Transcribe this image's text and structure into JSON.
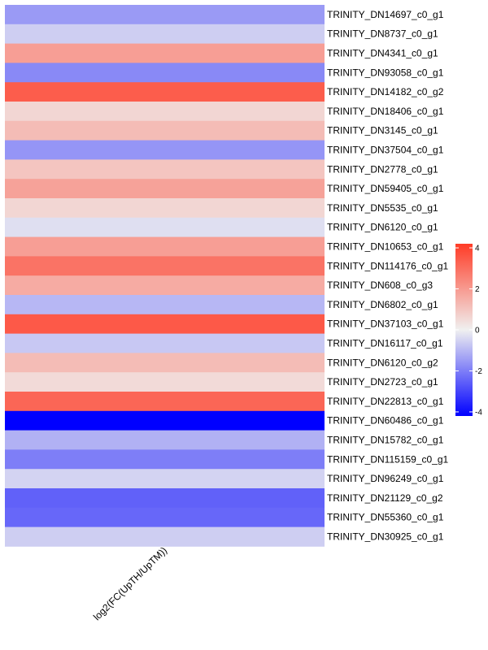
{
  "chart_data": {
    "type": "heatmap",
    "column_label": "log2(FC(UpTH/UpTM))",
    "rows": [
      {
        "name": "TRINITY_DN14697_c0_g1",
        "value": -1.5
      },
      {
        "name": "TRINITY_DN8737_c0_g1",
        "value": -0.6
      },
      {
        "name": "TRINITY_DN4341_c0_g1",
        "value": 1.9
      },
      {
        "name": "TRINITY_DN93058_c0_g1",
        "value": -1.8
      },
      {
        "name": "TRINITY_DN14182_c0_g2",
        "value": 3.4
      },
      {
        "name": "TRINITY_DN18406_c0_g1",
        "value": 0.6
      },
      {
        "name": "TRINITY_DN3145_c0_g1",
        "value": 1.2
      },
      {
        "name": "TRINITY_DN37504_c0_g1",
        "value": -1.6
      },
      {
        "name": "TRINITY_DN2778_c0_g1",
        "value": 1.0
      },
      {
        "name": "TRINITY_DN59405_c0_g1",
        "value": 1.8
      },
      {
        "name": "TRINITY_DN5535_c0_g1",
        "value": 0.6
      },
      {
        "name": "TRINITY_DN6120_c0_g1",
        "value": -0.3
      },
      {
        "name": "TRINITY_DN10653_c0_g1",
        "value": 1.9
      },
      {
        "name": "TRINITY_DN114176_c0_g1",
        "value": 2.9
      },
      {
        "name": "TRINITY_DN608_c0_g3",
        "value": 1.6
      },
      {
        "name": "TRINITY_DN6802_c0_g1",
        "value": -1.0
      },
      {
        "name": "TRINITY_DN37103_c0_g1",
        "value": 3.5
      },
      {
        "name": "TRINITY_DN16117_c0_g1",
        "value": -0.7
      },
      {
        "name": "TRINITY_DN6120_c0_g2",
        "value": 1.2
      },
      {
        "name": "TRINITY_DN2723_c0_g1",
        "value": 0.5
      },
      {
        "name": "TRINITY_DN22813_c0_g1",
        "value": 3.2
      },
      {
        "name": "TRINITY_DN60486_c0_g1",
        "value": -4.2
      },
      {
        "name": "TRINITY_DN15782_c0_g1",
        "value": -1.1
      },
      {
        "name": "TRINITY_DN115159_c0_g1",
        "value": -2.0
      },
      {
        "name": "TRINITY_DN96249_c0_g1",
        "value": -0.5
      },
      {
        "name": "TRINITY_DN21129_c0_g2",
        "value": -2.5
      },
      {
        "name": "TRINITY_DN55360_c0_g1",
        "value": -2.4
      },
      {
        "name": "TRINITY_DN30925_c0_g1",
        "value": -0.6
      }
    ],
    "color_scale": {
      "low": "#0000ff",
      "mid": "#f0f0f0",
      "high": "#ff3b26",
      "range": [
        -4.2,
        4.2
      ],
      "ticks": [
        -4,
        -2,
        0,
        2,
        4
      ]
    },
    "legend_position": "right",
    "grid": false
  }
}
